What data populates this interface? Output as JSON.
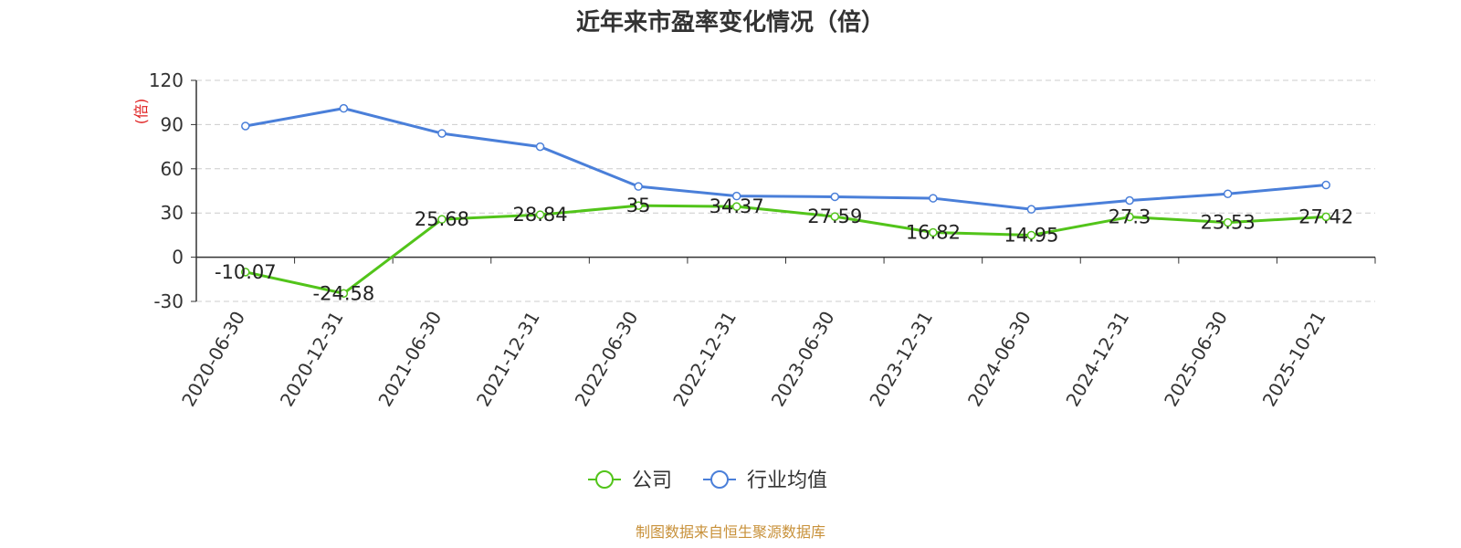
{
  "chart_data": {
    "type": "line",
    "title": "近年来市盈率变化情况（倍）",
    "ylabel": "(倍)",
    "xlabel": "",
    "x": [
      "2020-06-30",
      "2020-12-31",
      "2021-06-30",
      "2021-12-31",
      "2022-06-30",
      "2022-12-31",
      "2023-06-30",
      "2023-12-31",
      "2024-06-30",
      "2024-12-31",
      "2025-06-30",
      "2025-10-21"
    ],
    "ylim": [
      -30,
      120
    ],
    "yticks": [
      120,
      90,
      60,
      30,
      0,
      -30
    ],
    "grid": true,
    "legend_position": "bottom",
    "series": [
      {
        "name": "公司",
        "color": "#52c41a",
        "values": [
          -10.07,
          -24.58,
          25.68,
          28.84,
          35,
          34.37,
          27.59,
          16.82,
          14.95,
          27.3,
          23.53,
          27.42
        ],
        "labels": [
          "-10.07",
          "-24.58",
          "25.68",
          "28.84",
          "35",
          "34.37",
          "27.59",
          "16.82",
          "14.95",
          "27.3",
          "23.53",
          "27.42"
        ]
      },
      {
        "name": "行业均值",
        "color": "#4a7fd9",
        "values": [
          89,
          101,
          84,
          75,
          48,
          41.5,
          41,
          40,
          32.5,
          38.5,
          43,
          49
        ]
      }
    ],
    "source": "制图数据来自恒生聚源数据库",
    "colors": {
      "unit_label": "#e02020",
      "source": "#c8913a",
      "grid": "#cccccc",
      "axis": "#333333"
    }
  }
}
